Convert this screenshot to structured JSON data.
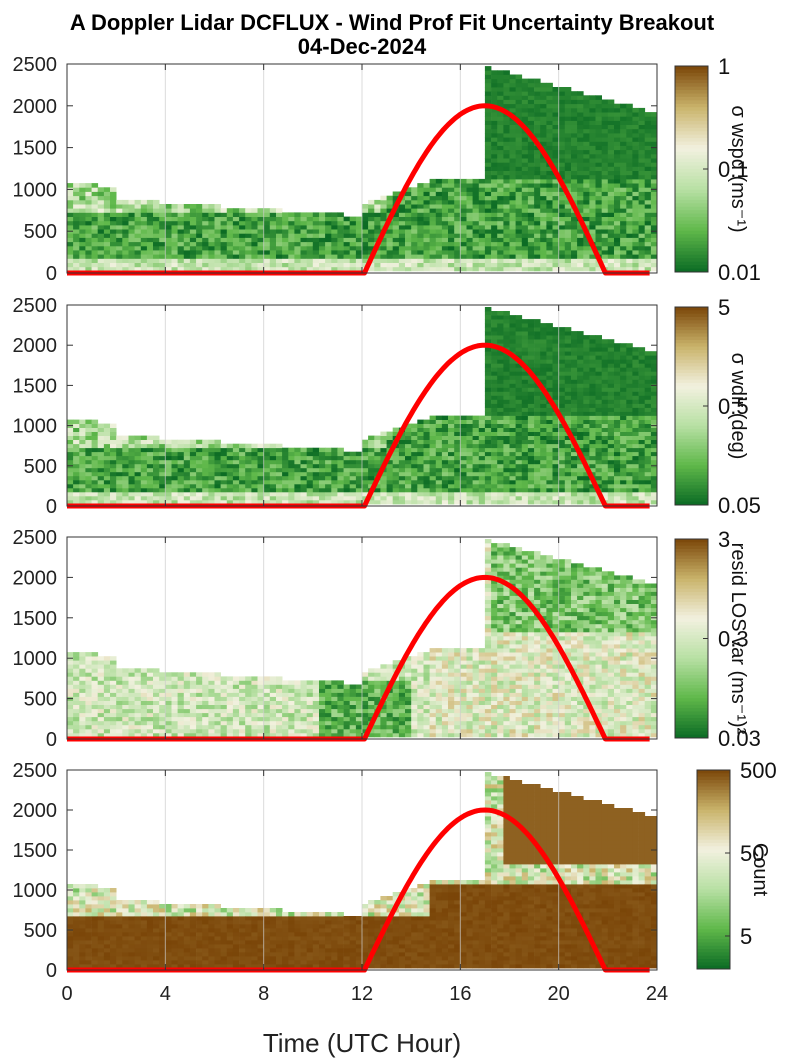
{
  "figure": {
    "title_line1": "A Doppler Lidar DCFLUX - Wind Prof Fit Uncertainty Breakout",
    "title_line2": "04-Dec-2024",
    "xlabel": "Time (UTC Hour)"
  },
  "colors": {
    "dark_green": "#0b6b24",
    "mid_green": "#5fb84a",
    "light_green": "#b8e0a4",
    "pale": "#f2f1df",
    "tan": "#c9b36a",
    "brown": "#7a4508",
    "sun_curve": "#ff0000"
  },
  "chart_data": [
    {
      "type": "heatmap",
      "panel": "sigma-wspd",
      "x_ticks": [
        "0",
        "4",
        "8",
        "12",
        "16",
        "20",
        "24"
      ],
      "y_ticks": [
        "0",
        "500",
        "1000",
        "1500",
        "2000",
        "2500"
      ],
      "xlim": [
        0,
        24
      ],
      "ylim": [
        0,
        2500
      ],
      "colorbar": {
        "label": "σ wspd (ms⁻¹)",
        "ticks": [
          "0.01",
          "0.1",
          "1"
        ],
        "scale": "log",
        "range": [
          0.01,
          1
        ]
      },
      "sun_curve": {
        "start_hour": 12.1,
        "end_hour": 21.9,
        "peak_hour": 17,
        "peak_value": 2000
      }
    },
    {
      "type": "heatmap",
      "panel": "sigma-wdir",
      "x_ticks": [
        "0",
        "4",
        "8",
        "12",
        "16",
        "20",
        "24"
      ],
      "y_ticks": [
        "0",
        "500",
        "1000",
        "1500",
        "2000",
        "2500"
      ],
      "xlim": [
        0,
        24
      ],
      "ylim": [
        0,
        2500
      ],
      "colorbar": {
        "label": "σ wdir (deg)",
        "ticks": [
          "0.05",
          "0.5",
          "5"
        ],
        "scale": "log",
        "range": [
          0.05,
          5
        ]
      },
      "sun_curve": {
        "start_hour": 12.1,
        "end_hour": 21.9,
        "peak_hour": 17,
        "peak_value": 2000
      }
    },
    {
      "type": "heatmap",
      "panel": "resid-los-var",
      "x_ticks": [
        "0",
        "4",
        "8",
        "12",
        "16",
        "20",
        "24"
      ],
      "y_ticks": [
        "0",
        "500",
        "1000",
        "1500",
        "2000",
        "2500"
      ],
      "xlim": [
        0,
        24
      ],
      "ylim": [
        0,
        2500
      ],
      "colorbar": {
        "label": "resid LOS var (ms⁻¹)²",
        "ticks": [
          "0.03",
          "0.3",
          "3"
        ],
        "scale": "log",
        "range": [
          0.03,
          3
        ]
      },
      "sun_curve": {
        "start_hour": 12.1,
        "end_hour": 21.9,
        "peak_hour": 17,
        "peak_value": 2000
      }
    },
    {
      "type": "heatmap",
      "panel": "count",
      "x_ticks": [
        "0",
        "4",
        "8",
        "12",
        "16",
        "20",
        "24"
      ],
      "y_ticks": [
        "0",
        "500",
        "1000",
        "1500",
        "2000",
        "2500"
      ],
      "xlim": [
        0,
        24
      ],
      "ylim": [
        0,
        2500
      ],
      "colorbar": {
        "label": "Count",
        "ticks": [
          "5",
          "50",
          "500"
        ],
        "scale": "log",
        "range": [
          2,
          500
        ]
      },
      "sun_curve": {
        "start_hour": 12.1,
        "end_hour": 21.9,
        "peak_hour": 17,
        "peak_value": 2000
      }
    }
  ]
}
